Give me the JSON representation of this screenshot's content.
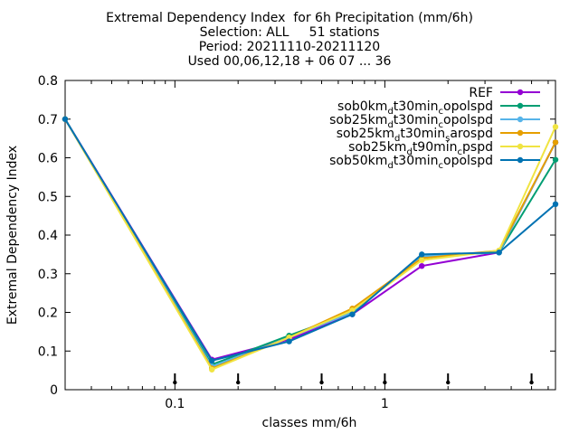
{
  "title_lines": [
    "Extremal Dependency Index  for 6h Precipitation (mm/6h)",
    "Selection: ALL     51 stations",
    "Period: 20211110-20211120",
    "Used 00,06,12,18 + 06 07 ... 36"
  ],
  "chart_data": {
    "type": "line",
    "xscale": "log",
    "xlabel": "classes mm/6h",
    "ylabel": "Extremal Dependency Index",
    "xlim": [
      0.03,
      6.5
    ],
    "ylim": [
      0,
      0.8
    ],
    "yticks": [
      0,
      0.1,
      0.2,
      0.3,
      0.4,
      0.5,
      0.6,
      0.7,
      0.8
    ],
    "ytick_labels": [
      "0",
      "0.1",
      "0.2",
      "0.3",
      "0.4",
      "0.5",
      "0.6",
      "0.7",
      "0.8"
    ],
    "xticks": [
      0.1,
      1
    ],
    "xtick_labels": [
      "0.1",
      "1"
    ],
    "grid": false,
    "legend_position": "top-right",
    "class_markers_x": [
      0.1,
      0.2,
      0.5,
      1,
      2,
      5
    ],
    "series": [
      {
        "name": "REF",
        "color": "#9400d3",
        "x": [
          0.03,
          0.15,
          0.35,
          0.7,
          1.5,
          3.5,
          6.5
        ],
        "y": [
          0.7,
          0.078,
          0.13,
          0.195,
          0.32,
          0.355,
          0.64
        ]
      },
      {
        "name": "sob0km_d t30min_c opolspd",
        "name_parts": [
          "sob0km",
          "d",
          "t30min",
          "c",
          "opolspd"
        ],
        "sub_style": [
          "",
          "sub",
          "",
          "sub",
          ""
        ],
        "color": "#009e73",
        "x": [
          0.03,
          0.15,
          0.35,
          0.7,
          1.5,
          3.5,
          6.5
        ],
        "y": [
          0.7,
          0.065,
          0.14,
          0.2,
          0.345,
          0.355,
          0.595
        ]
      },
      {
        "name": "sob25km_d t30min_c opolspd",
        "name_parts": [
          "sob25km",
          "d",
          "t30min",
          "c",
          "opolspd"
        ],
        "sub_style": [
          "",
          "sub",
          "",
          "sub",
          ""
        ],
        "color": "#56b4e9",
        "x": [
          0.03,
          0.15,
          0.35,
          0.7,
          1.5,
          3.5,
          6.5
        ],
        "y": [
          0.7,
          0.06,
          0.135,
          0.2,
          0.345,
          0.355,
          0.64
        ]
      },
      {
        "name": "sob25km_d t30min_s arospd",
        "name_parts": [
          "sob25km",
          "d",
          "t30min",
          "s",
          "arospd"
        ],
        "sub_style": [
          "",
          "sub",
          "",
          "sub",
          ""
        ],
        "color": "#e69f00",
        "x": [
          0.03,
          0.15,
          0.35,
          0.7,
          1.5,
          3.5,
          6.5
        ],
        "y": [
          0.7,
          0.055,
          0.135,
          0.21,
          0.34,
          0.36,
          0.64
        ]
      },
      {
        "name": "sob25km_d t90min_c pspd",
        "name_parts": [
          "sob25km",
          "d",
          "t90min",
          "c",
          "pspd"
        ],
        "sub_style": [
          "",
          "sub",
          "",
          "sub",
          ""
        ],
        "color": "#f0e442",
        "x": [
          0.03,
          0.15,
          0.35,
          0.7,
          1.5,
          3.5,
          6.5
        ],
        "y": [
          0.7,
          0.052,
          0.135,
          0.205,
          0.335,
          0.36,
          0.68
        ]
      },
      {
        "name": "sob50km_d t30min_c opolspd",
        "name_parts": [
          "sob50km",
          "d",
          "t30min",
          "c",
          "opolspd"
        ],
        "sub_style": [
          "",
          "sub",
          "",
          "sub",
          ""
        ],
        "color": "#0072b2",
        "x": [
          0.03,
          0.15,
          0.35,
          0.7,
          1.5,
          3.5,
          6.5
        ],
        "y": [
          0.7,
          0.075,
          0.125,
          0.195,
          0.35,
          0.355,
          0.48
        ]
      }
    ]
  }
}
